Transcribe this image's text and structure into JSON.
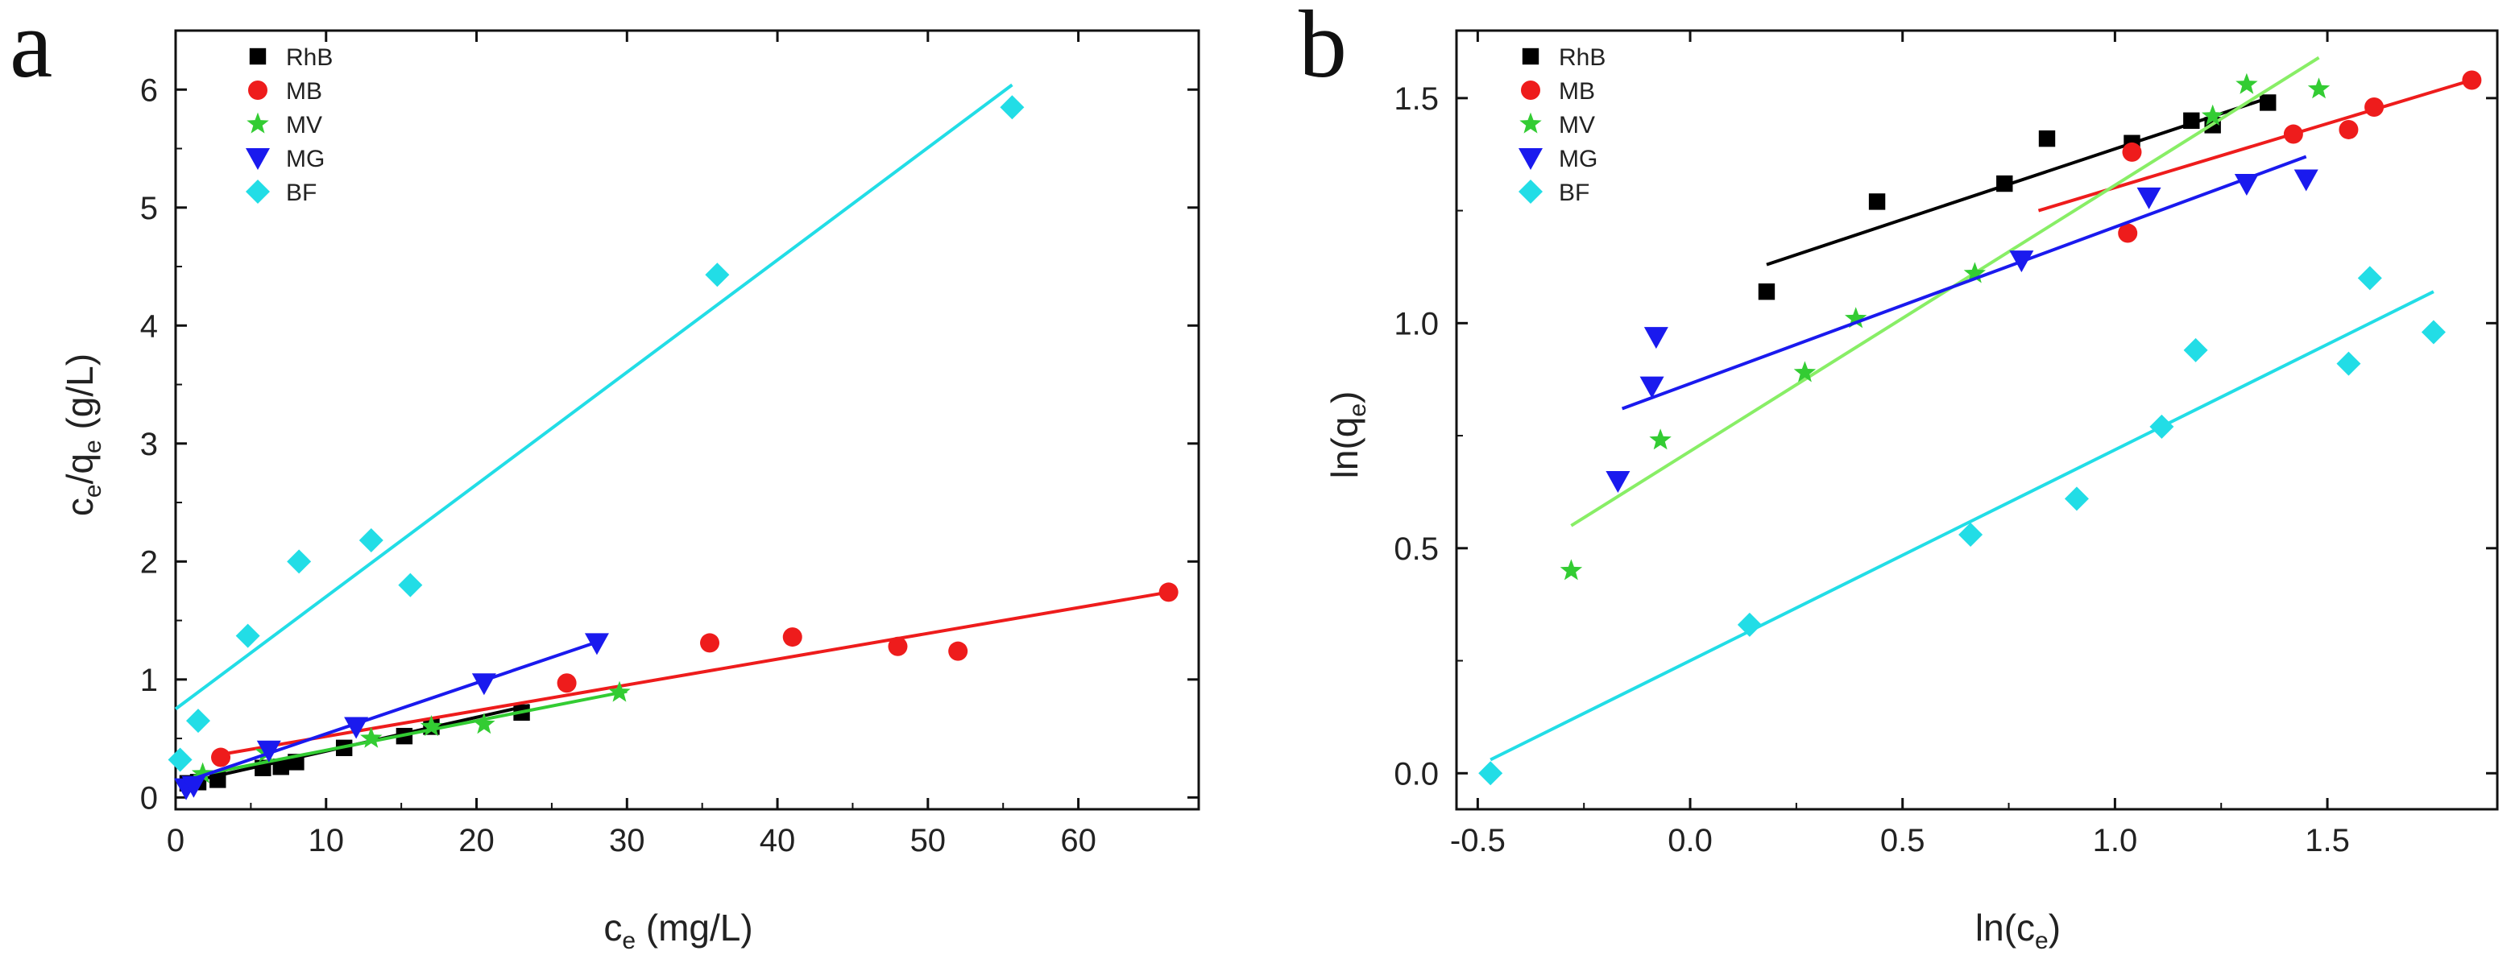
{
  "colors": {
    "RhB": "#000000",
    "MB": "#ee1c1c",
    "MV": "#33cc33",
    "MV_fit": "#88ee66",
    "MG": "#1a1aee",
    "BF": "#22dde6"
  },
  "chart_data": [
    {
      "type": "scatter",
      "panel_letter": "a",
      "xlabel": {
        "main": "c",
        "sub": "e",
        "tail": " (mg/L)"
      },
      "ylabel": {
        "p1": "c",
        "s1": "e",
        "p2": "/q",
        "s2": "e",
        "p3": " (g/L)"
      },
      "xlim": [
        0,
        68
      ],
      "ylim": [
        -0.1,
        6.5
      ],
      "xticks": [
        0,
        10,
        20,
        30,
        40,
        50,
        60
      ],
      "yticks": [
        0,
        1,
        2,
        3,
        4,
        5,
        6
      ],
      "xtick_labels": [
        "0",
        "10",
        "20",
        "30",
        "40",
        "50",
        "60"
      ],
      "ytick_labels": [
        "0",
        "1",
        "2",
        "3",
        "4",
        "5",
        "6"
      ],
      "legend_position": "top-left",
      "series": [
        {
          "name": "RhB",
          "color_key": "RhB",
          "marker": "square",
          "points": [
            [
              0.8,
              0.12
            ],
            [
              1.5,
              0.13
            ],
            [
              2.8,
              0.15
            ],
            [
              5.8,
              0.25
            ],
            [
              7.0,
              0.26
            ],
            [
              8.0,
              0.3
            ],
            [
              11.2,
              0.42
            ],
            [
              15.2,
              0.52
            ],
            [
              17.0,
              0.6
            ],
            [
              23.0,
              0.72
            ]
          ],
          "fit": [
            [
              0.5,
              0.12
            ],
            [
              23.5,
              0.78
            ]
          ]
        },
        {
          "name": "MB",
          "color_key": "MB",
          "marker": "circle",
          "points": [
            [
              3.0,
              0.34
            ],
            [
              26.0,
              0.97
            ],
            [
              35.5,
              1.31
            ],
            [
              41.0,
              1.36
            ],
            [
              48.0,
              1.28
            ],
            [
              52.0,
              1.24
            ],
            [
              66.0,
              1.74
            ]
          ],
          "fit": [
            [
              2.8,
              0.36
            ],
            [
              66.0,
              1.74
            ]
          ]
        },
        {
          "name": "MV",
          "color_key": "MV",
          "fit_color_key": "MV",
          "marker": "star",
          "points": [
            [
              1.8,
              0.2
            ],
            [
              6.0,
              0.38
            ],
            [
              13.0,
              0.5
            ],
            [
              17.0,
              0.6
            ],
            [
              20.5,
              0.62
            ],
            [
              29.5,
              0.89
            ]
          ],
          "fit": [
            [
              1.2,
              0.18
            ],
            [
              30.0,
              0.9
            ]
          ]
        },
        {
          "name": "MG",
          "color_key": "MG",
          "marker": "triangle-down",
          "points": [
            [
              0.7,
              0.08
            ],
            [
              1.2,
              0.1
            ],
            [
              6.2,
              0.4
            ],
            [
              12.0,
              0.6
            ],
            [
              20.5,
              0.97
            ],
            [
              28.0,
              1.31
            ]
          ],
          "fit": [
            [
              0.3,
              0.12
            ],
            [
              28.3,
              1.33
            ]
          ]
        },
        {
          "name": "BF",
          "color_key": "BF",
          "marker": "diamond",
          "points": [
            [
              0.3,
              0.32
            ],
            [
              1.5,
              0.65
            ],
            [
              4.8,
              1.37
            ],
            [
              8.2,
              2.0
            ],
            [
              13.0,
              2.18
            ],
            [
              15.6,
              1.8
            ],
            [
              36.0,
              4.43
            ],
            [
              55.6,
              5.85
            ]
          ],
          "fit": [
            [
              0.0,
              0.75
            ],
            [
              55.6,
              6.04
            ]
          ]
        }
      ]
    },
    {
      "type": "scatter",
      "panel_letter": "b",
      "xlabel": {
        "p1": "ln(c",
        "s1": "e",
        "p2": ")"
      },
      "ylabel": {
        "p1": "ln(q",
        "s1": "e",
        "p2": ")"
      },
      "xlim": [
        -0.55,
        1.9
      ],
      "ylim": [
        -0.08,
        1.65
      ],
      "xticks": [
        -0.5,
        0.0,
        0.5,
        1.0,
        1.5
      ],
      "yticks": [
        0.0,
        0.5,
        1.0,
        1.5
      ],
      "xtick_labels": [
        "-0.5",
        "0.0",
        "0.5",
        "1.0",
        "1.5"
      ],
      "ytick_labels": [
        "0.0",
        "0.5",
        "1.0",
        "1.5"
      ],
      "legend_position": "top-left",
      "series": [
        {
          "name": "RhB",
          "color_key": "RhB",
          "marker": "square",
          "points": [
            [
              0.18,
              1.07
            ],
            [
              0.44,
              1.27
            ],
            [
              0.74,
              1.31
            ],
            [
              0.84,
              1.41
            ],
            [
              1.04,
              1.4
            ],
            [
              1.18,
              1.45
            ],
            [
              1.23,
              1.44
            ],
            [
              1.36,
              1.49
            ]
          ],
          "fit": [
            [
              0.18,
              1.13
            ],
            [
              1.36,
              1.5
            ]
          ]
        },
        {
          "name": "MB",
          "color_key": "MB",
          "marker": "circle",
          "points": [
            [
              1.03,
              1.2
            ],
            [
              1.04,
              1.38
            ],
            [
              1.42,
              1.42
            ],
            [
              1.55,
              1.43
            ],
            [
              1.61,
              1.48
            ],
            [
              1.84,
              1.54
            ]
          ],
          "fit": [
            [
              0.82,
              1.25
            ],
            [
              1.84,
              1.54
            ]
          ]
        },
        {
          "name": "MV",
          "color_key": "MV",
          "fit_color_key": "MV_fit",
          "marker": "star",
          "points": [
            [
              -0.28,
              0.45
            ],
            [
              -0.07,
              0.74
            ],
            [
              0.27,
              0.89
            ],
            [
              0.39,
              1.01
            ],
            [
              0.67,
              1.11
            ],
            [
              1.23,
              1.46
            ],
            [
              1.31,
              1.53
            ],
            [
              1.48,
              1.52
            ]
          ],
          "fit": [
            [
              -0.28,
              0.55
            ],
            [
              1.48,
              1.59
            ]
          ]
        },
        {
          "name": "MG",
          "color_key": "MG",
          "marker": "triangle-down",
          "points": [
            [
              -0.17,
              0.65
            ],
            [
              -0.09,
              0.86
            ],
            [
              -0.08,
              0.97
            ],
            [
              0.78,
              1.14
            ],
            [
              1.08,
              1.28
            ],
            [
              1.31,
              1.31
            ],
            [
              1.45,
              1.32
            ]
          ],
          "fit": [
            [
              -0.16,
              0.81
            ],
            [
              1.45,
              1.37
            ]
          ]
        },
        {
          "name": "BF",
          "color_key": "BF",
          "marker": "diamond",
          "points": [
            [
              -0.47,
              0.0
            ],
            [
              0.14,
              0.33
            ],
            [
              0.66,
              0.53
            ],
            [
              0.91,
              0.61
            ],
            [
              1.11,
              0.77
            ],
            [
              1.19,
              0.94
            ],
            [
              1.55,
              0.91
            ],
            [
              1.6,
              1.1
            ],
            [
              1.75,
              0.98
            ]
          ],
          "fit": [
            [
              -0.47,
              0.03
            ],
            [
              1.75,
              1.07
            ]
          ]
        }
      ]
    }
  ]
}
